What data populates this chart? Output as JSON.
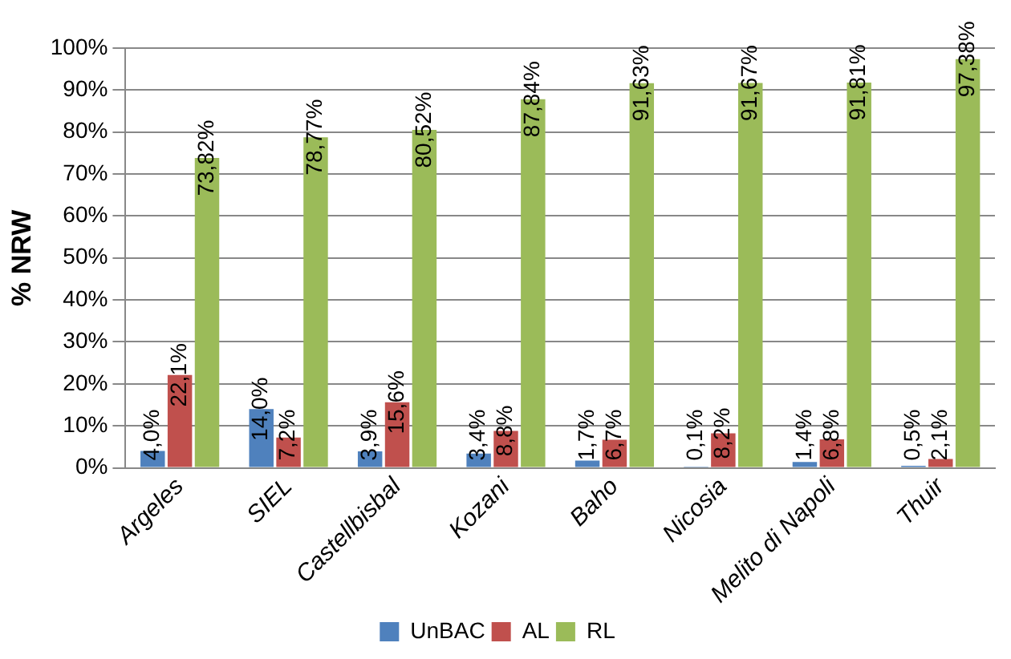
{
  "chart_data": {
    "type": "bar",
    "ylabel": "% NRW",
    "categories": [
      "Argeles",
      "SIEL",
      "Castellbisbal",
      "Kozani",
      "Baho",
      "Nicosia",
      "Melito di Napoli",
      "Thuir"
    ],
    "series": [
      {
        "name": "UnBAC",
        "color": "#4f81bd",
        "values": [
          4.0,
          14.0,
          3.9,
          3.4,
          1.7,
          0.1,
          1.4,
          0.5
        ],
        "value_labels": [
          "4,0%",
          "14,0%",
          "3,9%",
          "3,4%",
          "1,7%",
          "0,1%",
          "1,4%",
          "0,5%"
        ]
      },
      {
        "name": "AL",
        "color": "#c0504d",
        "values": [
          22.1,
          7.2,
          15.6,
          8.8,
          6.7,
          8.2,
          6.8,
          2.1
        ],
        "value_labels": [
          "22,1%",
          "7,2%",
          "15,6%",
          "8,8%",
          "6,7%",
          "8,2%",
          "6,8%",
          "2,1%"
        ]
      },
      {
        "name": "RL",
        "color": "#9bbb59",
        "values": [
          73.82,
          78.77,
          80.52,
          87.84,
          91.63,
          91.67,
          91.81,
          97.38
        ],
        "value_labels": [
          "73,82%",
          "78,77%",
          "80,52%",
          "87,84%",
          "91,63%",
          "91,67%",
          "91,81%",
          "97,38%"
        ]
      }
    ],
    "ylim": [
      0,
      100
    ],
    "yticks": [
      {
        "value": 0,
        "label": "0%"
      },
      {
        "value": 10,
        "label": "10%"
      },
      {
        "value": 20,
        "label": "20%"
      },
      {
        "value": 30,
        "label": "30%"
      },
      {
        "value": 40,
        "label": "40%"
      },
      {
        "value": 50,
        "label": "50%"
      },
      {
        "value": 60,
        "label": "60%"
      },
      {
        "value": 70,
        "label": "70%"
      },
      {
        "value": 80,
        "label": "80%"
      },
      {
        "value": 90,
        "label": "90%"
      },
      {
        "value": 100,
        "label": "100%"
      }
    ],
    "grid": "y",
    "legend": "bottom"
  }
}
